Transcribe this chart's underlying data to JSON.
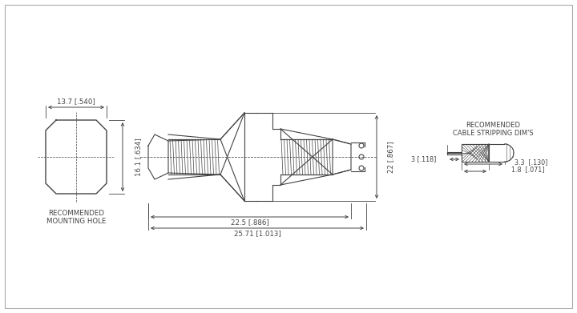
{
  "bg_color": "#ffffff",
  "line_color": "#444444",
  "mounting_hole_label": "RECOMMENDED\nMOUNTING HOLE",
  "cable_label": "RECOMMENDED\nCABLE STRIPPING DIM'S",
  "dim_13_7": "13.7 [.540]",
  "dim_16_1": "16.1 [.634]",
  "dim_22": "22 [.867]",
  "dim_22_5": "22.5 [.886]",
  "dim_25_71": "25.71 [1.013]",
  "dim_1_8": "1.8  [.071]",
  "dim_3_3": "3.3  [.130]",
  "dim_3": "3 [.118]"
}
